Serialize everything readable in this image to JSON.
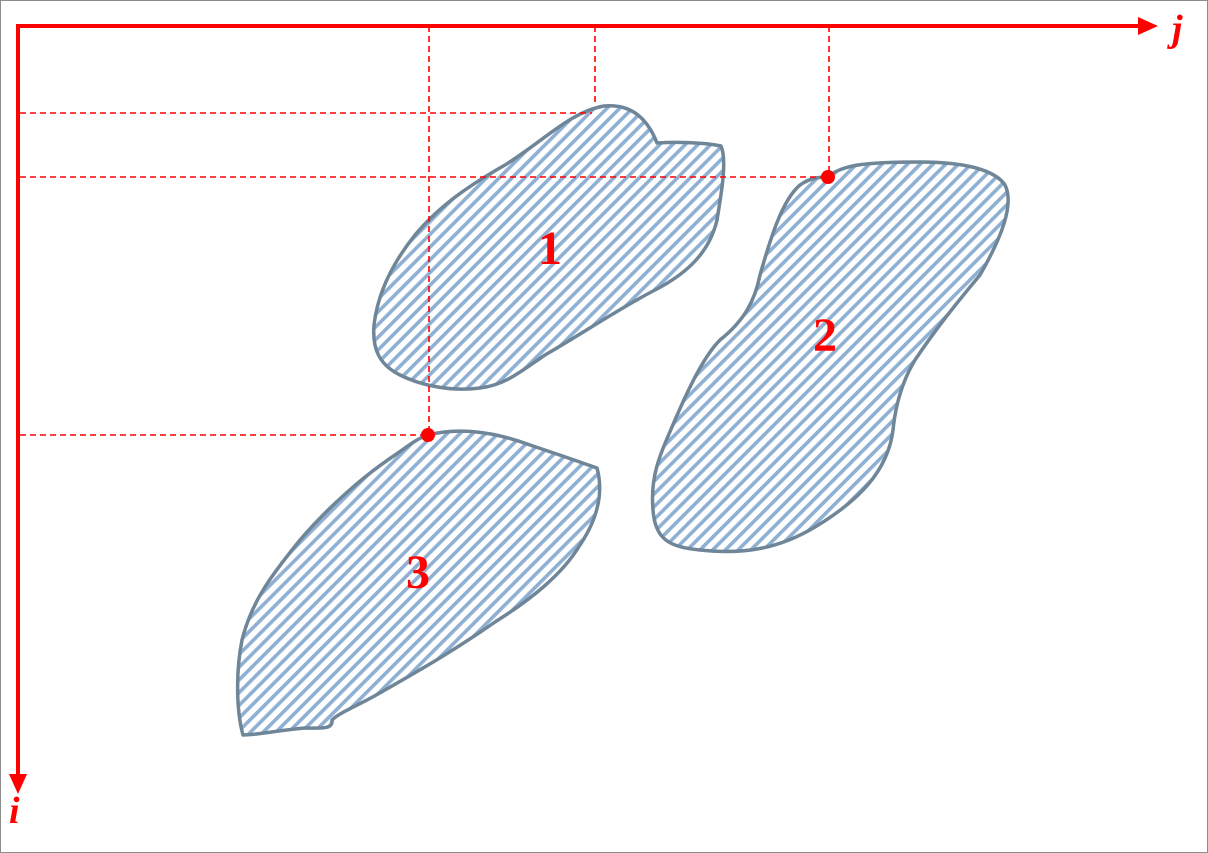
{
  "axes": {
    "horizontal_label": "j",
    "vertical_label": "i"
  },
  "regions": [
    {
      "label": "1"
    },
    {
      "label": "2"
    },
    {
      "label": "3"
    }
  ],
  "colors": {
    "axis": "#ff0000",
    "region_outline": "#6f8598",
    "hatch": "#8fb0d2"
  }
}
